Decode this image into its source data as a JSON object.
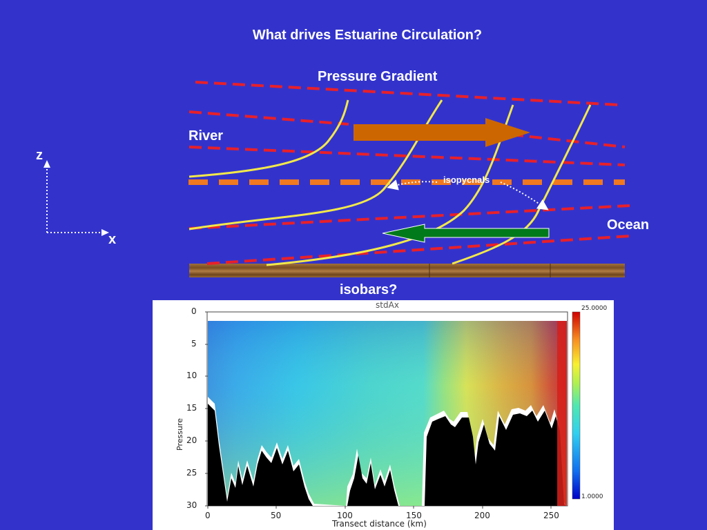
{
  "title": "What drives Estuarine Circulation?",
  "labels": {
    "pressure_gradient": "Pressure Gradient",
    "river": "River",
    "ocean": "Ocean",
    "isobars": "isobars?",
    "isopycnals": "isopycnals",
    "axis_z": "z",
    "axis_x": "x"
  },
  "colors": {
    "background": "#3333cc",
    "isobar_dash": "#e8202a",
    "isopycnal_line": "#f2e84a",
    "mid_dash": "#f07820",
    "surface_arrow": "#cc6600",
    "bottom_arrow": "#007a1a",
    "seabed": "#8a5a2b"
  },
  "plot": {
    "title": "stdAx",
    "ylabel": "Pressure",
    "xlabel": "Transect distance (km)",
    "yticks": [
      "0",
      "5",
      "10",
      "15",
      "20",
      "25",
      "30"
    ],
    "xticks": [
      "0",
      "50",
      "100",
      "150",
      "200",
      "250"
    ],
    "colorbar_max": "25.0000",
    "colorbar_min": "1.0000"
  }
}
